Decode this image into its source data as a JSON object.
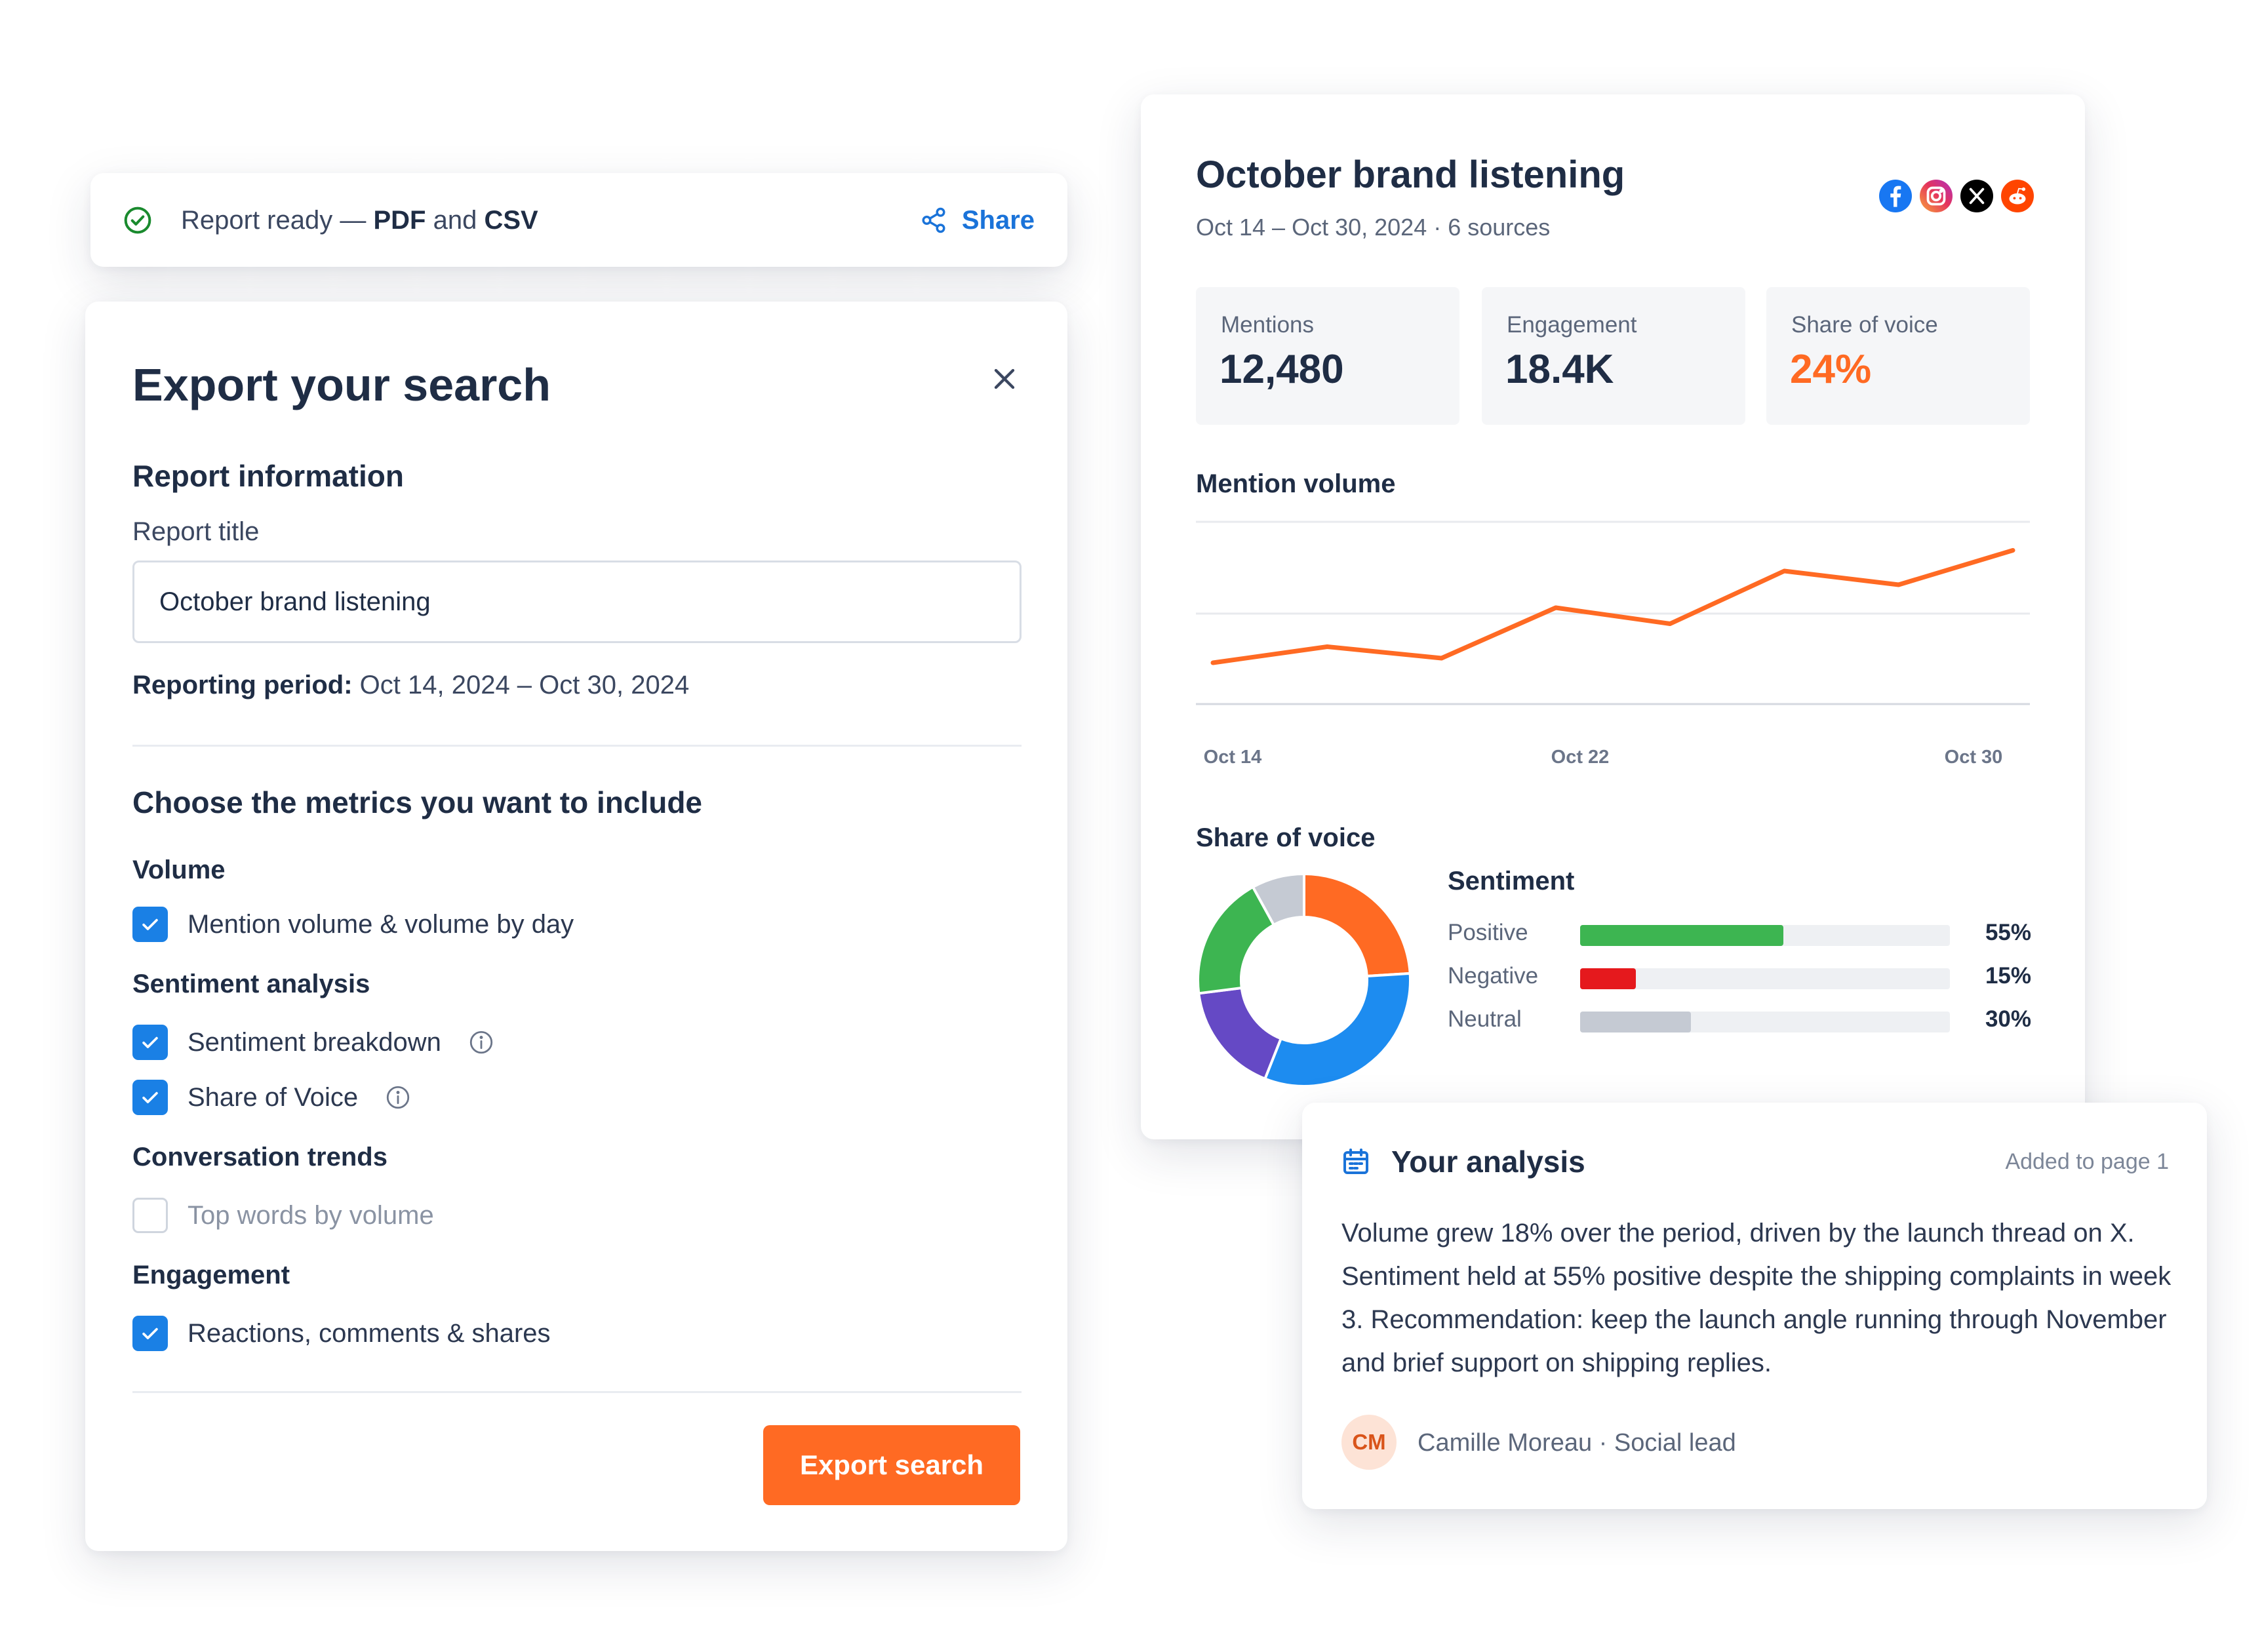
{
  "toast": {
    "text_prefix": "Report ready — ",
    "format1": "PDF",
    "joiner": " and ",
    "format2": "CSV",
    "share_label": "Share"
  },
  "export": {
    "title": "Export your search",
    "report_info_heading": "Report information",
    "report_title_label": "Report title",
    "report_title_value": "October brand listening",
    "period_label": "Reporting period:",
    "period_value": " Oct 14, 2024 – Oct 30, 2024",
    "metrics_heading": "Choose the metrics you want to include",
    "groups": {
      "volume": "Volume",
      "sentiment": "Sentiment analysis",
      "trends": "Conversation trends",
      "engagement": "Engagement"
    },
    "options": {
      "mention_volume": {
        "label": "Mention volume & volume by day",
        "checked": true
      },
      "sentiment_breakdown": {
        "label": "Sentiment breakdown",
        "checked": true
      },
      "share_of_voice": {
        "label": "Share of Voice",
        "checked": true
      },
      "top_words": {
        "label": "Top words by volume",
        "checked": false
      },
      "reactions": {
        "label": "Reactions, comments & shares",
        "checked": true
      }
    },
    "button_label": "Export search"
  },
  "report": {
    "title": "October brand listening",
    "subtitle": "Oct 14 – Oct 30, 2024 · 6 sources",
    "sources": [
      "facebook-icon",
      "instagram-icon",
      "x-icon",
      "reddit-icon"
    ],
    "stats": [
      {
        "label": "Mentions",
        "value": "12,480"
      },
      {
        "label": "Engagement",
        "value": "18.4K"
      },
      {
        "label": "Share of voice",
        "value": "24%"
      }
    ],
    "mention_volume_heading": "Mention volume",
    "share_of_voice_heading": "Share of voice",
    "sentiment_heading": "Sentiment",
    "sentiment": [
      {
        "label": "Positive",
        "percent_text": "55%",
        "value": 55,
        "color": "#3db551"
      },
      {
        "label": "Negative",
        "percent_text": "15%",
        "value": 15,
        "color": "#e5191d"
      },
      {
        "label": "Neutral",
        "percent_text": "30%",
        "value": 30,
        "color": "#c5cad3"
      }
    ]
  },
  "chart_data": [
    {
      "type": "line",
      "x_ticks": [
        "Oct 14",
        "Oct 22",
        "Oct 30"
      ],
      "series": [
        {
          "values": [
            18,
            25,
            20,
            42,
            35,
            58,
            52,
            67
          ],
          "color": "#ff6a23"
        }
      ],
      "ylim": [
        0,
        80
      ],
      "grid": true
    },
    {
      "type": "pie",
      "donut": true,
      "slices": [
        {
          "value": 24,
          "color": "#ff6a23"
        },
        {
          "value": 32,
          "color": "#1d8cf0"
        },
        {
          "value": 17,
          "color": "#6549c5"
        },
        {
          "value": 19,
          "color": "#3db551"
        },
        {
          "value": 8,
          "color": "#c5cad3"
        }
      ]
    }
  ],
  "analysis": {
    "title": "Your analysis",
    "added_label": "Added to page 1",
    "body": "Volume grew 18% over the period, driven by the launch thread on X. Sentiment held at 55% positive despite the shipping complaints in week 3. Recommendation: keep the launch angle running through November and brief support on shipping replies.",
    "author_initials": "CM",
    "author": "Camille Moreau · Social lead"
  },
  "colors": {
    "accent": "#ff6a23",
    "link": "#1a73d9",
    "checkbox": "#1a80e5",
    "success": "#1a8a2e"
  }
}
